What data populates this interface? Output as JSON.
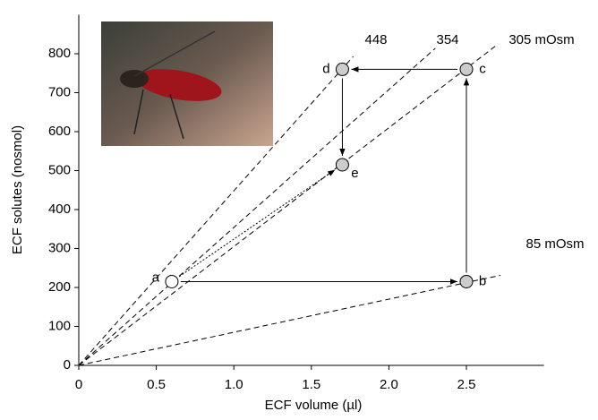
{
  "chart_data": {
    "type": "scatter",
    "x_label": "ECF volume (µl)",
    "y_label": "ECF solutes (nosmol)",
    "xlim": [
      0,
      3
    ],
    "ylim": [
      0,
      900
    ],
    "xticks": [
      0,
      0.5,
      {
        "value": 1,
        "label": "1.0"
      },
      1.5,
      {
        "value": 2,
        "label": "2.0"
      },
      2.5
    ],
    "yticks": [
      0,
      100,
      200,
      300,
      400,
      500,
      600,
      700,
      800
    ],
    "series": [
      {
        "labels": [
          "a",
          "b",
          "c",
          "d",
          "e"
        ],
        "x": [
          0.6,
          2.5,
          2.5,
          1.7,
          1.7
        ],
        "values": [
          215,
          215,
          760,
          760,
          515
        ],
        "colors": [
          "#ffffff",
          "#cccccc",
          "#cccccc",
          "#cccccc",
          "#cccccc"
        ]
      }
    ],
    "isosmotic_lines": [
      {
        "value": 448,
        "label": "448"
      },
      {
        "value": 354,
        "label": "354"
      },
      {
        "value": 305,
        "label": "305 mOsm"
      },
      {
        "value": 85,
        "label": "85 mOsm"
      }
    ]
  }
}
